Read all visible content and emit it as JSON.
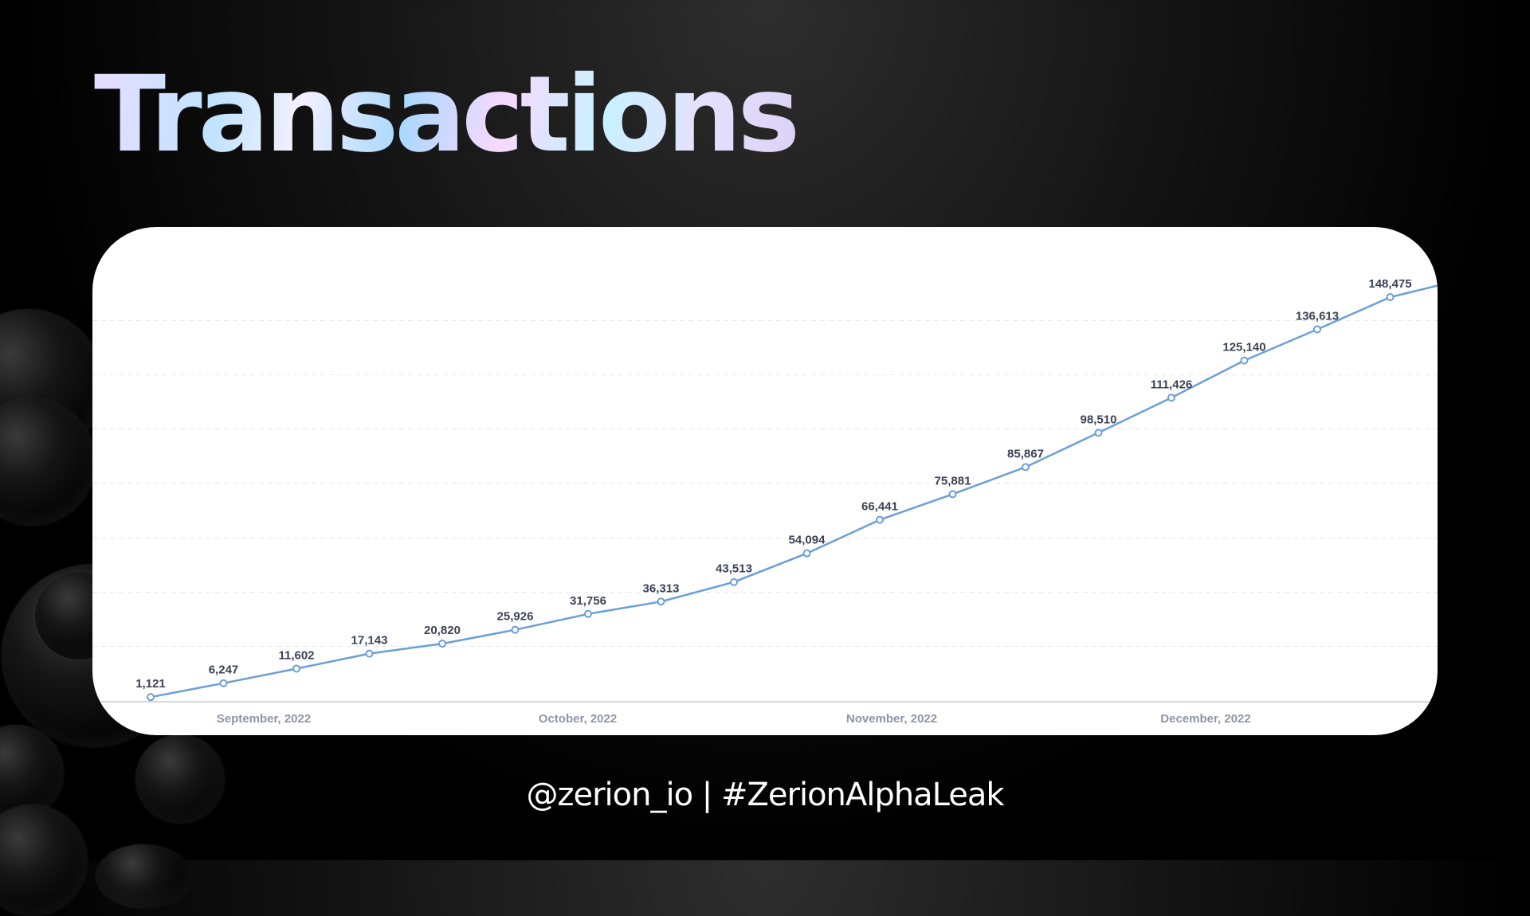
{
  "title": "Transactions",
  "footer": "@zerion_io | #ZerionAlphaLeak",
  "chart_data": {
    "type": "line",
    "title": "Transactions",
    "x_tick_labels": [
      "September, 2022",
      "October, 2022",
      "November, 2022",
      "December, 2022"
    ],
    "values": [
      1121,
      6247,
      11602,
      17143,
      20820,
      25926,
      31756,
      36313,
      43513,
      54094,
      66441,
      75881,
      85867,
      98510,
      111426,
      125140,
      136613,
      148475
    ],
    "value_labels": [
      "1,121",
      "6,247",
      "11,602",
      "17,143",
      "20,820",
      "25,926",
      "31,756",
      "36,313",
      "43,513",
      "54,094",
      "66,441",
      "75,881",
      "85,867",
      "98,510",
      "111,426",
      "125,140",
      "136,613",
      "148,475"
    ],
    "ylim": [
      0,
      157000
    ],
    "grid": true,
    "line_color": "#6a9fd8"
  }
}
